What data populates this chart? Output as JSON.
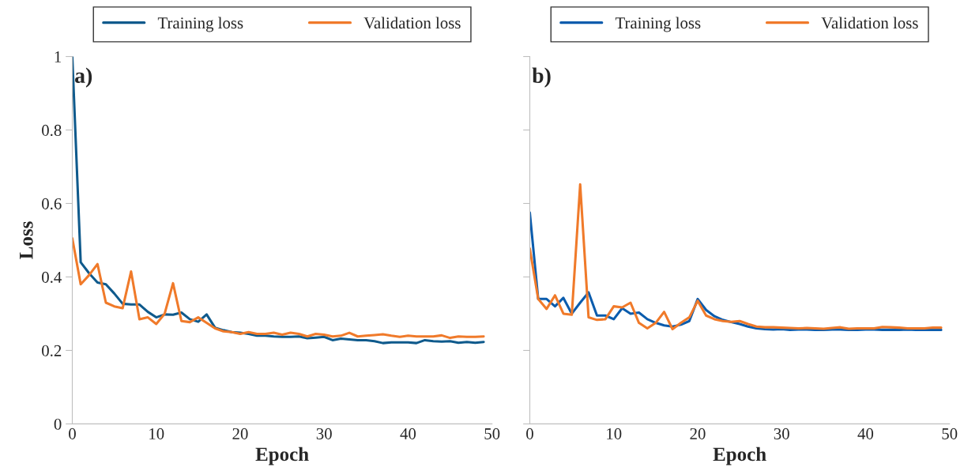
{
  "chart_data": [
    {
      "type": "line",
      "xlabel": "Epoch",
      "ylabel": "Loss",
      "annotations": [
        "a)"
      ],
      "legend": "top",
      "grid": false,
      "xlim": [
        0,
        50
      ],
      "xticks": [
        0,
        10,
        20,
        30,
        40,
        50
      ],
      "ylim": [
        0,
        1
      ],
      "yticks": [
        0,
        0.2,
        0.4,
        0.6,
        0.8,
        1
      ],
      "x": [
        0,
        1,
        2,
        3,
        4,
        5,
        6,
        7,
        8,
        9,
        10,
        11,
        12,
        13,
        14,
        15,
        16,
        17,
        18,
        19,
        20,
        21,
        22,
        23,
        24,
        25,
        26,
        27,
        28,
        29,
        30,
        31,
        32,
        33,
        34,
        35,
        36,
        37,
        38,
        39,
        40,
        41,
        42,
        43,
        44,
        45,
        46,
        47,
        48,
        49
      ],
      "series": [
        {
          "name": "Training loss",
          "color": "#0f5a8c",
          "values": [
            1.0,
            0.44,
            0.41,
            0.385,
            0.38,
            0.355,
            0.327,
            0.325,
            0.325,
            0.305,
            0.29,
            0.298,
            0.297,
            0.303,
            0.285,
            0.278,
            0.298,
            0.262,
            0.255,
            0.25,
            0.248,
            0.245,
            0.24,
            0.24,
            0.238,
            0.237,
            0.237,
            0.238,
            0.233,
            0.235,
            0.237,
            0.228,
            0.232,
            0.23,
            0.228,
            0.228,
            0.225,
            0.22,
            0.222,
            0.222,
            0.222,
            0.22,
            0.228,
            0.225,
            0.224,
            0.225,
            0.221,
            0.223,
            0.221,
            0.223
          ]
        },
        {
          "name": "Validation loss",
          "color": "#f07a2a",
          "values": [
            0.505,
            0.38,
            0.405,
            0.435,
            0.33,
            0.32,
            0.315,
            0.415,
            0.285,
            0.29,
            0.272,
            0.3,
            0.383,
            0.28,
            0.277,
            0.29,
            0.275,
            0.26,
            0.252,
            0.25,
            0.245,
            0.25,
            0.245,
            0.245,
            0.248,
            0.243,
            0.248,
            0.245,
            0.238,
            0.245,
            0.243,
            0.238,
            0.24,
            0.248,
            0.238,
            0.24,
            0.242,
            0.244,
            0.24,
            0.237,
            0.24,
            0.238,
            0.238,
            0.238,
            0.241,
            0.234,
            0.238,
            0.237,
            0.237,
            0.238
          ]
        }
      ]
    },
    {
      "type": "line",
      "xlabel": "Epoch",
      "annotations": [
        "b)"
      ],
      "legend": "top",
      "grid": false,
      "tick_labels": "x",
      "xlim": [
        0,
        50
      ],
      "xticks": [
        0,
        10,
        20,
        30,
        40,
        50
      ],
      "ylim": [
        0,
        1
      ],
      "yticks": [
        0,
        0.2,
        0.4,
        0.6,
        0.8,
        1
      ],
      "x": [
        0,
        1,
        2,
        3,
        4,
        5,
        6,
        7,
        8,
        9,
        10,
        11,
        12,
        13,
        14,
        15,
        16,
        17,
        18,
        19,
        20,
        21,
        22,
        23,
        24,
        25,
        26,
        27,
        28,
        29,
        30,
        31,
        32,
        33,
        34,
        35,
        36,
        37,
        38,
        39,
        40,
        41,
        42,
        43,
        44,
        45,
        46,
        47,
        48,
        49
      ],
      "series": [
        {
          "name": "Training loss",
          "color": "#0b5cad",
          "values": [
            0.575,
            0.34,
            0.34,
            0.32,
            0.343,
            0.3,
            0.33,
            0.358,
            0.295,
            0.295,
            0.285,
            0.315,
            0.3,
            0.303,
            0.285,
            0.275,
            0.268,
            0.265,
            0.27,
            0.28,
            0.34,
            0.31,
            0.293,
            0.283,
            0.277,
            0.272,
            0.265,
            0.26,
            0.258,
            0.257,
            0.258,
            0.256,
            0.257,
            0.257,
            0.256,
            0.256,
            0.257,
            0.257,
            0.256,
            0.256,
            0.257,
            0.257,
            0.256,
            0.256,
            0.256,
            0.257,
            0.256,
            0.256,
            0.256,
            0.256
          ]
        },
        {
          "name": "Validation loss",
          "color": "#f07a2a",
          "values": [
            0.477,
            0.34,
            0.313,
            0.35,
            0.3,
            0.297,
            0.652,
            0.29,
            0.283,
            0.285,
            0.32,
            0.317,
            0.33,
            0.275,
            0.26,
            0.275,
            0.305,
            0.258,
            0.275,
            0.29,
            0.335,
            0.295,
            0.285,
            0.28,
            0.278,
            0.28,
            0.272,
            0.265,
            0.263,
            0.263,
            0.262,
            0.261,
            0.26,
            0.261,
            0.26,
            0.259,
            0.261,
            0.263,
            0.259,
            0.26,
            0.26,
            0.26,
            0.264,
            0.263,
            0.262,
            0.26,
            0.26,
            0.26,
            0.262,
            0.262
          ]
        }
      ]
    }
  ]
}
